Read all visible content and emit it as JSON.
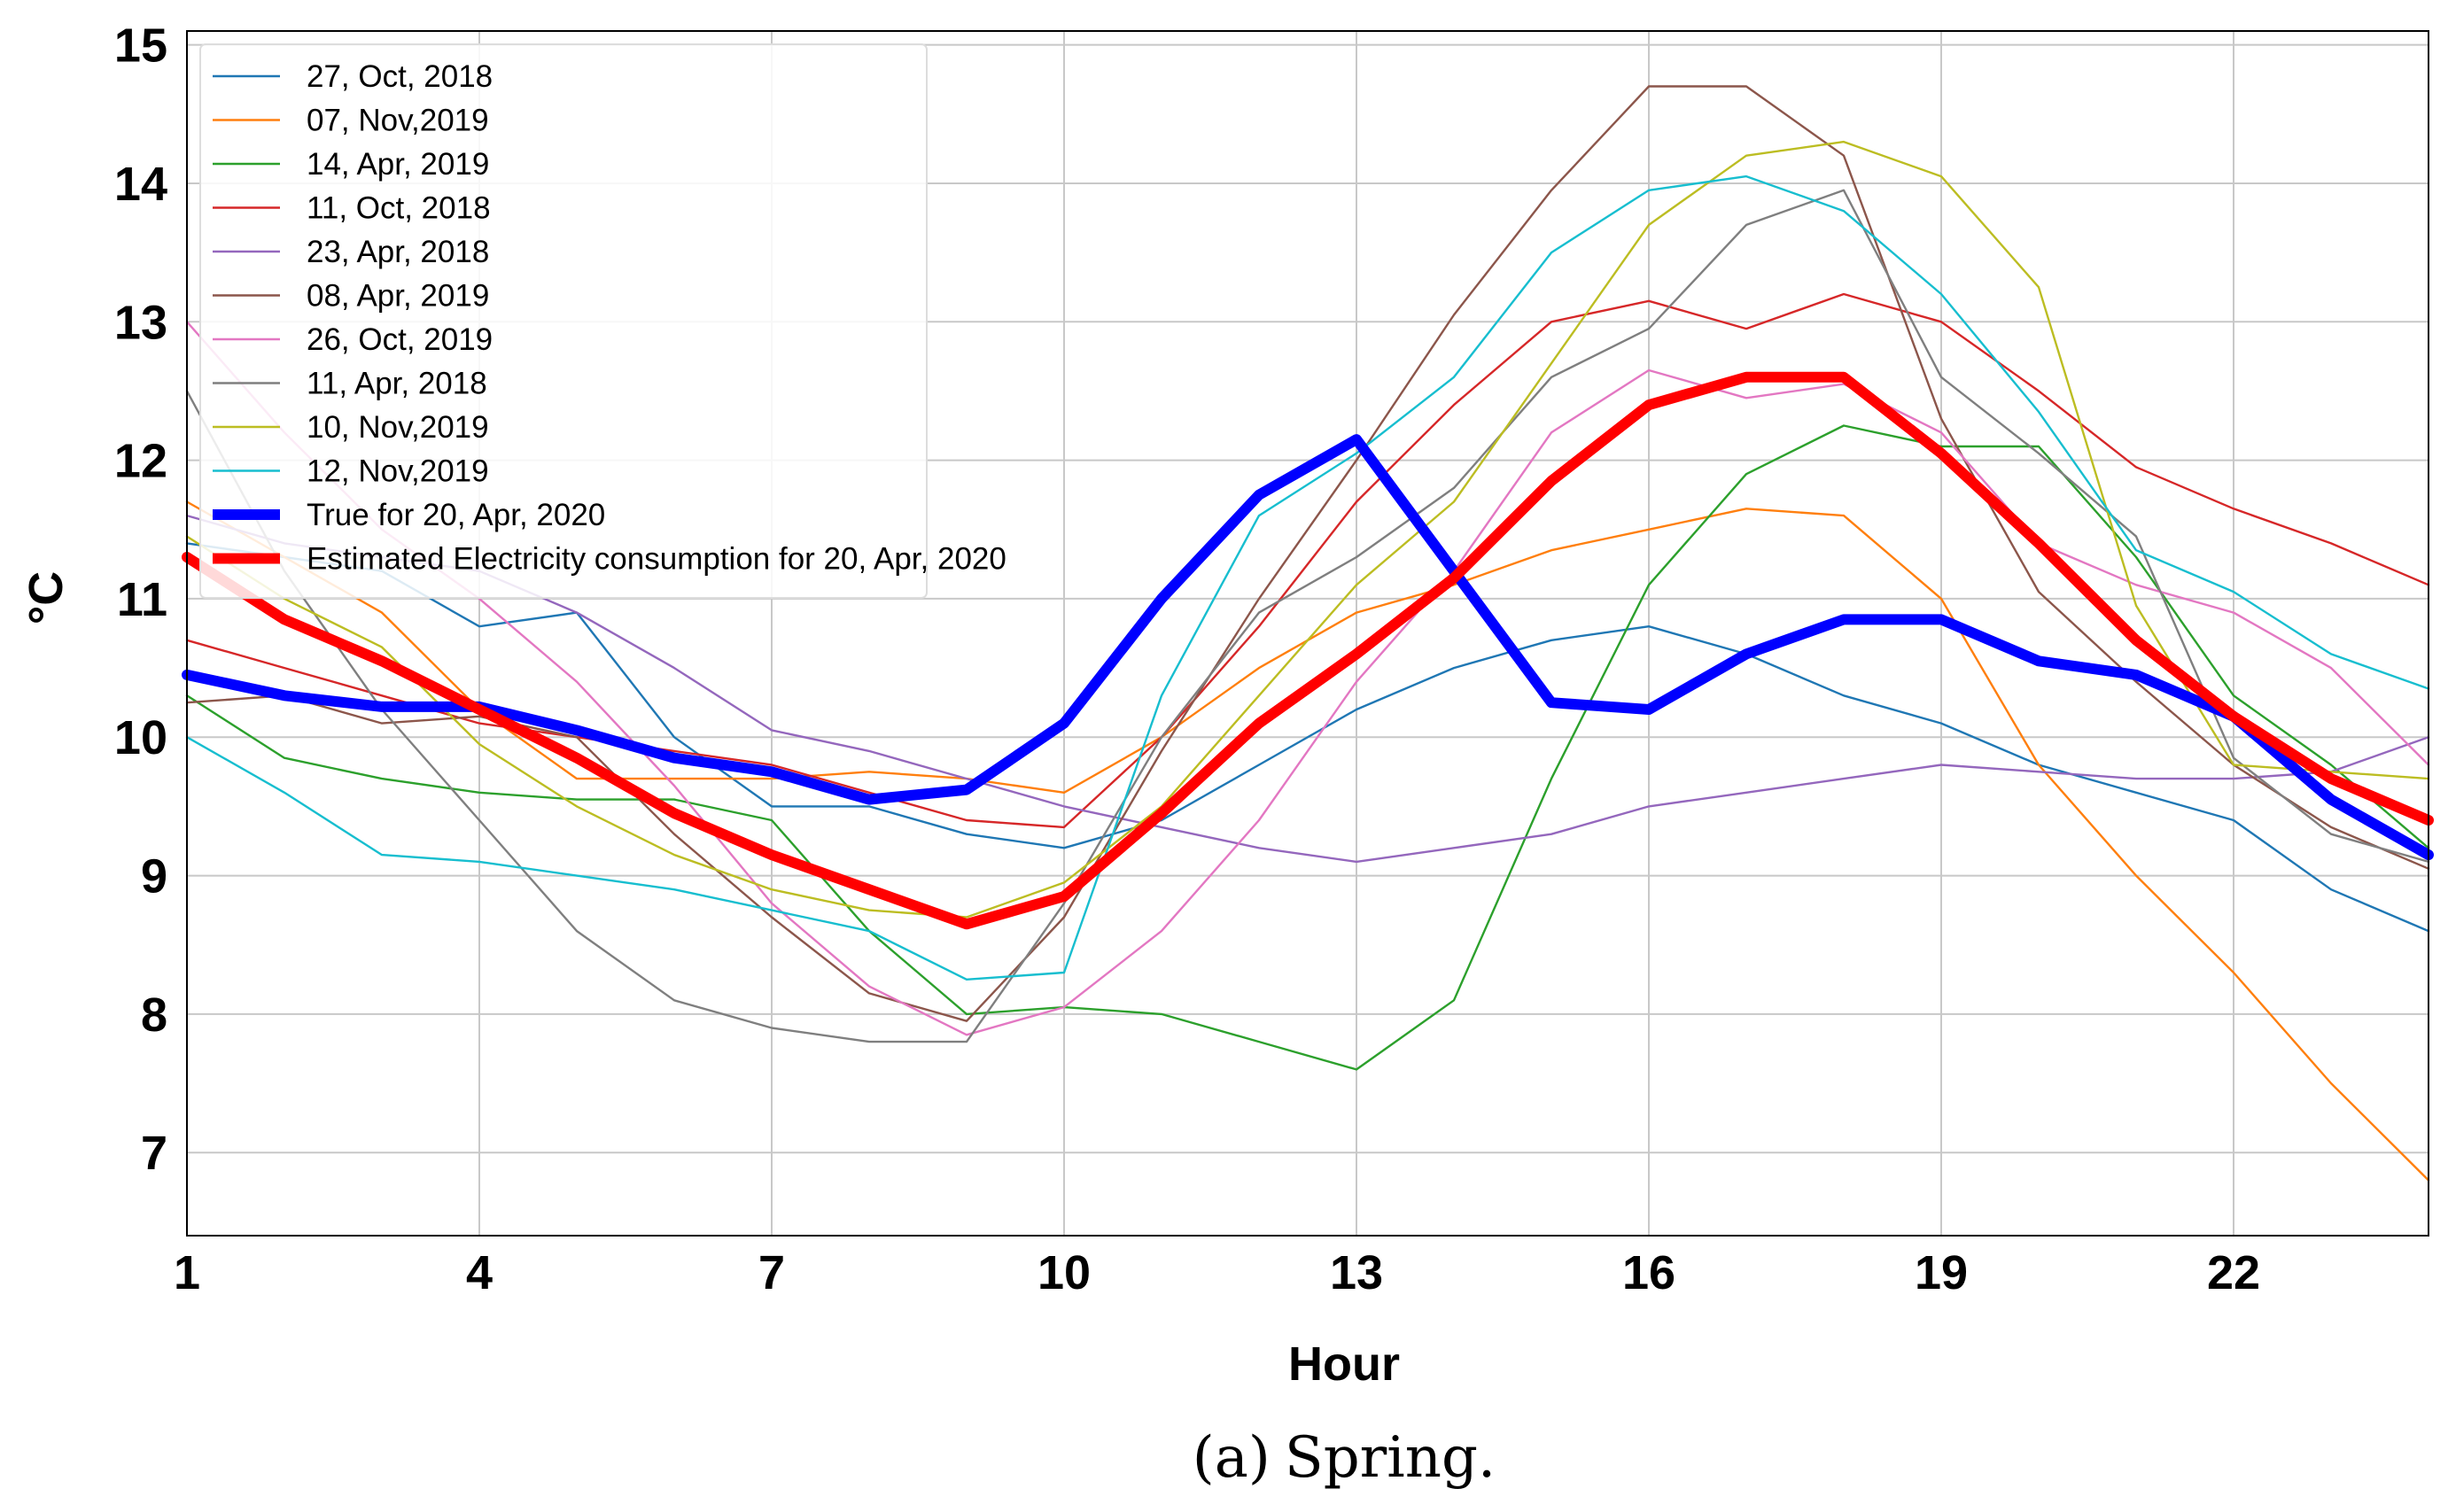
{
  "chart_data": {
    "type": "line",
    "xlabel": "Hour",
    "ylabel": "°C",
    "caption_label": "(a)",
    "caption_text": "Spring.",
    "xlim": [
      1,
      24
    ],
    "ylim": [
      6.4,
      15.1
    ],
    "x_ticks": [
      1,
      4,
      7,
      10,
      13,
      16,
      19,
      22
    ],
    "y_ticks": [
      7,
      8,
      9,
      10,
      11,
      12,
      13,
      14,
      15
    ],
    "grid": true,
    "legend_position": "top-left",
    "x": [
      1,
      2,
      3,
      4,
      5,
      6,
      7,
      8,
      9,
      10,
      11,
      12,
      13,
      14,
      15,
      16,
      17,
      18,
      19,
      20,
      21,
      22,
      23,
      24
    ],
    "series": [
      {
        "name": "27, Oct, 2018",
        "color": "#1f77b4",
        "width": "thin",
        "values": [
          11.4,
          11.3,
          11.2,
          10.8,
          10.9,
          10.0,
          9.5,
          9.5,
          9.3,
          9.2,
          9.4,
          9.8,
          10.2,
          10.5,
          10.7,
          10.8,
          10.6,
          10.3,
          10.1,
          9.8,
          9.6,
          9.4,
          8.9,
          8.6
        ]
      },
      {
        "name": "07, Nov,2019",
        "color": "#ff7f0e",
        "width": "thin",
        "values": [
          11.7,
          11.3,
          10.9,
          10.2,
          9.7,
          9.7,
          9.7,
          9.75,
          9.7,
          9.6,
          10.0,
          10.5,
          10.9,
          11.1,
          11.35,
          11.5,
          11.65,
          11.6,
          11.0,
          9.8,
          9.0,
          8.3,
          7.5,
          6.8
        ]
      },
      {
        "name": "14, Apr, 2019",
        "color": "#2ca02c",
        "width": "thin",
        "values": [
          10.3,
          9.85,
          9.7,
          9.6,
          9.55,
          9.55,
          9.4,
          8.6,
          8.0,
          8.05,
          8.0,
          7.8,
          7.6,
          8.1,
          9.7,
          11.1,
          11.9,
          12.25,
          12.1,
          12.1,
          11.3,
          10.3,
          9.8,
          9.2
        ]
      },
      {
        "name": "11, Oct, 2018",
        "color": "#d62728",
        "width": "thin",
        "values": [
          10.7,
          10.5,
          10.3,
          10.1,
          10.0,
          9.9,
          9.8,
          9.6,
          9.4,
          9.35,
          10.0,
          10.8,
          11.7,
          12.4,
          13.0,
          13.15,
          12.95,
          13.2,
          13.0,
          12.5,
          11.95,
          11.65,
          11.4,
          11.1
        ]
      },
      {
        "name": "23, Apr, 2018",
        "color": "#9467bd",
        "width": "thin",
        "values": [
          11.6,
          11.4,
          11.3,
          11.2,
          10.9,
          10.5,
          10.05,
          9.9,
          9.7,
          9.5,
          9.35,
          9.2,
          9.1,
          9.2,
          9.3,
          9.5,
          9.6,
          9.7,
          9.8,
          9.75,
          9.7,
          9.7,
          9.75,
          10.0
        ]
      },
      {
        "name": "08, Apr, 2019",
        "color": "#8c564b",
        "width": "thin",
        "values": [
          10.25,
          10.3,
          10.1,
          10.15,
          10.0,
          9.3,
          8.7,
          8.15,
          7.95,
          8.7,
          9.9,
          11.0,
          12.0,
          13.05,
          13.95,
          14.7,
          14.7,
          14.2,
          12.3,
          11.05,
          10.4,
          9.8,
          9.35,
          9.05
        ]
      },
      {
        "name": "26, Oct, 2019",
        "color": "#e377c2",
        "width": "thin",
        "values": [
          13.0,
          12.2,
          11.5,
          11.0,
          10.4,
          9.65,
          8.8,
          8.2,
          7.85,
          8.05,
          8.6,
          9.4,
          10.4,
          11.2,
          12.2,
          12.65,
          12.45,
          12.55,
          12.2,
          11.4,
          11.1,
          10.9,
          10.5,
          9.8
        ]
      },
      {
        "name": "11, Apr, 2018",
        "color": "#7f7f7f",
        "width": "thin",
        "values": [
          12.5,
          11.2,
          10.2,
          9.4,
          8.6,
          8.1,
          7.9,
          7.8,
          7.8,
          8.8,
          10.0,
          10.9,
          11.3,
          11.8,
          12.6,
          12.95,
          13.7,
          13.95,
          12.6,
          12.05,
          11.45,
          9.85,
          9.3,
          9.1
        ]
      },
      {
        "name": "10, Nov,2019",
        "color": "#bcbd22",
        "width": "thin",
        "values": [
          11.45,
          11.0,
          10.65,
          9.95,
          9.5,
          9.15,
          8.9,
          8.75,
          8.7,
          8.95,
          9.5,
          10.3,
          11.1,
          11.7,
          12.7,
          13.7,
          14.2,
          14.3,
          14.05,
          13.25,
          10.95,
          9.8,
          9.75,
          9.7
        ]
      },
      {
        "name": "12, Nov,2019",
        "color": "#17becf",
        "width": "thin",
        "values": [
          10.0,
          9.6,
          9.15,
          9.1,
          9.0,
          8.9,
          8.75,
          8.6,
          8.25,
          8.3,
          10.3,
          11.6,
          12.05,
          12.6,
          13.5,
          13.95,
          14.05,
          13.8,
          13.2,
          12.35,
          11.35,
          11.05,
          10.6,
          10.35
        ]
      },
      {
        "name": "True for 20, Apr, 2020",
        "color": "#0000ff",
        "width": "bold",
        "values": [
          10.45,
          10.3,
          10.22,
          10.22,
          10.05,
          9.85,
          9.75,
          9.55,
          9.62,
          10.1,
          11.0,
          11.75,
          12.15,
          11.2,
          10.25,
          10.2,
          10.6,
          10.85,
          10.85,
          10.55,
          10.45,
          10.15,
          9.55,
          9.15
        ]
      },
      {
        "name": "Estimated Electricity consumption for 20, Apr, 2020",
        "color": "#ff0000",
        "width": "bold",
        "values": [
          11.3,
          10.85,
          10.55,
          10.2,
          9.85,
          9.45,
          9.15,
          8.9,
          8.65,
          8.85,
          9.45,
          10.1,
          10.6,
          11.15,
          11.85,
          12.4,
          12.6,
          12.6,
          12.05,
          11.4,
          10.7,
          10.15,
          9.7,
          9.4
        ]
      }
    ]
  }
}
